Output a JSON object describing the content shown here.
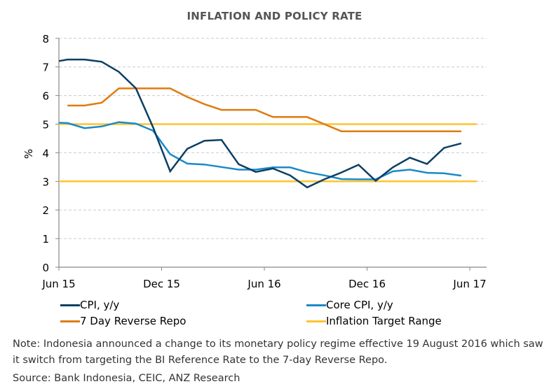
{
  "chart_data": {
    "type": "line",
    "title": "INFLATION AND POLICY RATE",
    "xlabel": "",
    "ylabel": "%",
    "ylim": [
      0,
      8
    ],
    "yticks": [
      0,
      1,
      2,
      3,
      4,
      5,
      6,
      7,
      8
    ],
    "grid": true,
    "x_tick_labels": [
      "Jun 15",
      "Dec 15",
      "Jun 16",
      "Dec 16",
      "Jun 17"
    ],
    "x_tick_months": [
      0,
      6,
      12,
      18,
      24
    ],
    "x_range_months": [
      0,
      24.6
    ],
    "x_point_offset_months": 0.5,
    "categories": [
      "May 15",
      "Jun 15",
      "Jul 15",
      "Aug 15",
      "Sep 15",
      "Oct 15",
      "Nov 15",
      "Dec 15",
      "Jan 16",
      "Feb 16",
      "Mar 16",
      "Apr 16",
      "May 16",
      "Jun 16",
      "Jul 16",
      "Aug 16",
      "Sep 16",
      "Oct 16",
      "Nov 16",
      "Dec 16",
      "Jan 17",
      "Feb 17",
      "Mar 17",
      "Apr 17",
      "May 17"
    ],
    "series": [
      {
        "name": "CPI, y/y",
        "color": "#0b3f63",
        "values": [
          7.15,
          7.26,
          7.26,
          7.18,
          6.83,
          6.25,
          4.89,
          3.35,
          4.14,
          4.42,
          4.45,
          3.6,
          3.33,
          3.45,
          3.21,
          2.79,
          3.07,
          3.31,
          3.58,
          3.02,
          3.49,
          3.83,
          3.61,
          4.17,
          4.33
        ]
      },
      {
        "name": "Core CPI, y/y",
        "color": "#1a8ac6",
        "values": [
          5.06,
          5.04,
          4.86,
          4.92,
          5.07,
          5.02,
          4.77,
          3.95,
          3.62,
          3.59,
          3.5,
          3.41,
          3.41,
          3.49,
          3.49,
          3.32,
          3.21,
          3.08,
          3.07,
          3.07,
          3.35,
          3.41,
          3.3,
          3.28,
          3.2
        ]
      },
      {
        "name": "7 Day Reverse Repo",
        "color": "#e07b10",
        "values": [
          null,
          5.65,
          5.65,
          5.75,
          6.25,
          6.25,
          6.25,
          6.25,
          5.95,
          5.7,
          5.5,
          5.5,
          5.5,
          5.25,
          5.25,
          5.25,
          5.0,
          4.75,
          4.75,
          4.75,
          4.75,
          4.75,
          4.75,
          4.75,
          4.75
        ]
      },
      {
        "name": "Inflation Target Range",
        "color": "#fbc531",
        "bands": [
          5,
          3
        ],
        "x_range_months": [
          0,
          24.4
        ]
      }
    ],
    "legend_position": "bottom"
  },
  "note": "Note: Indonesia announced a change to its monetary policy regime effective 19 August 2016 which saw it switch from targeting the BI Reference Rate to the 7-day Reverse Repo.",
  "source": "Source: Bank Indonesia, CEIC, ANZ Research"
}
